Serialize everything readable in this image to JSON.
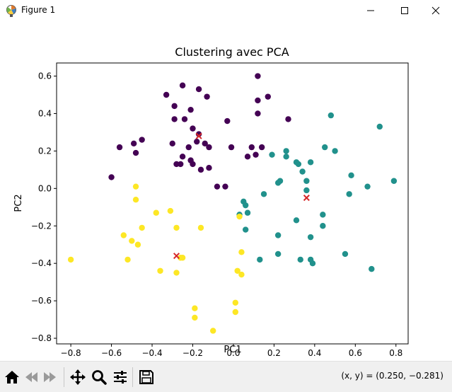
{
  "window": {
    "title": "Figure 1"
  },
  "toolbar": {
    "coords": "(x, y) = (0.250, −0.281)"
  },
  "colors": {
    "purple": "#440154",
    "teal": "#21918c",
    "yellow": "#fde725",
    "centroid": "#d62728"
  },
  "chart_data": {
    "type": "scatter",
    "title": "Clustering avec PCA",
    "xlabel": "PC1",
    "ylabel": "PC2",
    "xlim": [
      -0.87,
      0.86
    ],
    "ylim": [
      -0.83,
      0.67
    ],
    "xticks": [
      -0.8,
      -0.6,
      -0.4,
      -0.2,
      0.0,
      0.2,
      0.4,
      0.6,
      0.8
    ],
    "yticks": [
      -0.8,
      -0.6,
      -0.4,
      -0.2,
      0.0,
      0.2,
      0.4,
      0.6
    ],
    "xtick_labels": [
      "−0.8",
      "−0.6",
      "−0.4",
      "−0.2",
      "0.0",
      "0.2",
      "0.4",
      "0.6",
      "0.8"
    ],
    "ytick_labels": [
      "−0.8",
      "−0.6",
      "−0.4",
      "−0.2",
      "0.0",
      "0.2",
      "0.4",
      "0.6"
    ],
    "series": [
      {
        "color": "#440154",
        "points": [
          [
            0.12,
            0.6
          ],
          [
            -0.25,
            0.55
          ],
          [
            -0.17,
            0.53
          ],
          [
            -0.33,
            0.5
          ],
          [
            -0.13,
            0.49
          ],
          [
            0.17,
            0.49
          ],
          [
            0.12,
            0.47
          ],
          [
            -0.29,
            0.44
          ],
          [
            -0.21,
            0.42
          ],
          [
            0.12,
            0.4
          ],
          [
            -0.29,
            0.37
          ],
          [
            -0.24,
            0.37
          ],
          [
            0.27,
            0.37
          ],
          [
            -0.03,
            0.36
          ],
          [
            -0.2,
            0.32
          ],
          [
            -0.45,
            0.26
          ],
          [
            -0.18,
            0.25
          ],
          [
            -0.14,
            0.24
          ],
          [
            -0.3,
            0.24
          ],
          [
            -0.49,
            0.24
          ],
          [
            -0.17,
            0.29
          ],
          [
            -0.56,
            0.22
          ],
          [
            -0.22,
            0.22
          ],
          [
            -0.12,
            0.22
          ],
          [
            -0.01,
            0.22
          ],
          [
            0.09,
            0.22
          ],
          [
            0.14,
            0.22
          ],
          [
            -0.48,
            0.19
          ],
          [
            -0.25,
            0.17
          ],
          [
            0.11,
            0.18
          ],
          [
            -0.21,
            0.15
          ],
          [
            0.07,
            0.17
          ],
          [
            -0.26,
            0.13
          ],
          [
            -0.2,
            0.13
          ],
          [
            -0.28,
            0.13
          ],
          [
            -0.16,
            0.1
          ],
          [
            -0.12,
            0.11
          ],
          [
            -0.6,
            0.06
          ],
          [
            -0.08,
            0.01
          ],
          [
            -0.04,
            0.01
          ]
        ]
      },
      {
        "color": "#21918c",
        "points": [
          [
            0.48,
            0.39
          ],
          [
            0.72,
            0.33
          ],
          [
            0.45,
            0.22
          ],
          [
            0.5,
            0.2
          ],
          [
            0.26,
            0.2
          ],
          [
            0.19,
            0.18
          ],
          [
            0.26,
            0.17
          ],
          [
            0.31,
            0.14
          ],
          [
            0.32,
            0.13
          ],
          [
            0.38,
            0.14
          ],
          [
            0.34,
            0.09
          ],
          [
            0.22,
            0.03
          ],
          [
            0.23,
            0.04
          ],
          [
            0.36,
            0.04
          ],
          [
            0.58,
            0.07
          ],
          [
            0.79,
            0.04
          ],
          [
            0.66,
            0.01
          ],
          [
            0.36,
            -0.01
          ],
          [
            0.15,
            -0.03
          ],
          [
            0.57,
            -0.03
          ],
          [
            0.05,
            -0.07
          ],
          [
            0.06,
            -0.09
          ],
          [
            0.07,
            -0.13
          ],
          [
            0.44,
            -0.14
          ],
          [
            0.03,
            -0.14
          ],
          [
            0.31,
            -0.17
          ],
          [
            0.44,
            -0.2
          ],
          [
            0.06,
            -0.22
          ],
          [
            0.22,
            -0.25
          ],
          [
            0.38,
            -0.26
          ],
          [
            0.22,
            -0.35
          ],
          [
            0.55,
            -0.35
          ],
          [
            0.13,
            -0.38
          ],
          [
            0.33,
            -0.38
          ],
          [
            0.38,
            -0.38
          ],
          [
            0.39,
            -0.4
          ],
          [
            0.68,
            -0.43
          ]
        ]
      },
      {
        "color": "#fde725",
        "points": [
          [
            -0.48,
            0.01
          ],
          [
            -0.48,
            -0.06
          ],
          [
            -0.38,
            -0.13
          ],
          [
            -0.31,
            -0.12
          ],
          [
            0.03,
            -0.15
          ],
          [
            -0.45,
            -0.21
          ],
          [
            -0.28,
            -0.21
          ],
          [
            -0.16,
            -0.21
          ],
          [
            -0.54,
            -0.25
          ],
          [
            -0.5,
            -0.28
          ],
          [
            -0.47,
            -0.3
          ],
          [
            -0.25,
            -0.37
          ],
          [
            -0.26,
            -0.37
          ],
          [
            0.04,
            -0.34
          ],
          [
            -0.8,
            -0.38
          ],
          [
            -0.52,
            -0.38
          ],
          [
            -0.36,
            -0.44
          ],
          [
            -0.28,
            -0.45
          ],
          [
            0.02,
            -0.44
          ],
          [
            0.04,
            -0.46
          ],
          [
            0.01,
            -0.61
          ],
          [
            -0.19,
            -0.64
          ],
          [
            0.01,
            -0.66
          ],
          [
            -0.19,
            -0.69
          ],
          [
            -0.1,
            -0.76
          ]
        ]
      }
    ],
    "centroids": [
      [
        -0.17,
        0.28
      ],
      [
        0.36,
        -0.05
      ],
      [
        -0.28,
        -0.36
      ]
    ]
  }
}
